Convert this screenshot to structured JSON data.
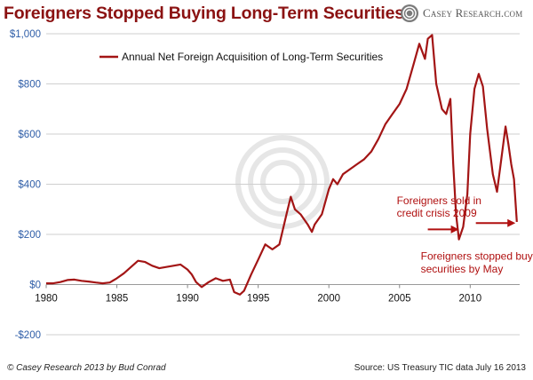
{
  "header": {
    "title": "Foreigners Stopped Buying Long-Term Securities",
    "logo_text": "Casey Research.com"
  },
  "footer": {
    "credit": "© Casey Research 2013 by Bud Conrad",
    "source": "Source: US Treasury TIC data July 16 2013"
  },
  "colors": {
    "series": "#a31515",
    "axis_labels": "#2f5ea8",
    "annotation": "#b01010",
    "title": "#8b1212"
  },
  "chart_data": {
    "type": "line",
    "title": "Foreigners Stopped Buying Long-Term Securities",
    "xlabel": "",
    "ylabel": "",
    "xlim": [
      1980,
      2013.5
    ],
    "ylim": [
      -200,
      1000
    ],
    "x_ticks": [
      1980,
      1985,
      1990,
      1995,
      2000,
      2005,
      2010
    ],
    "y_ticks": [
      -200,
      0,
      200,
      400,
      600,
      800,
      1000
    ],
    "y_tick_labels": [
      "-$200",
      "$0",
      "$200",
      "$400",
      "$600",
      "$800",
      "$1,000"
    ],
    "grid": "horizontal",
    "legend_position": "top-left",
    "series": [
      {
        "name": "Annual Net Foreign Acquisition of Long-Term Securities",
        "points": [
          [
            1980.0,
            5
          ],
          [
            1980.5,
            5
          ],
          [
            1981.0,
            10
          ],
          [
            1981.5,
            18
          ],
          [
            1982.0,
            20
          ],
          [
            1982.5,
            15
          ],
          [
            1983.0,
            12
          ],
          [
            1983.5,
            8
          ],
          [
            1984.0,
            5
          ],
          [
            1984.5,
            8
          ],
          [
            1985.0,
            25
          ],
          [
            1985.5,
            45
          ],
          [
            1986.0,
            70
          ],
          [
            1986.5,
            95
          ],
          [
            1987.0,
            90
          ],
          [
            1987.5,
            75
          ],
          [
            1988.0,
            65
          ],
          [
            1988.5,
            70
          ],
          [
            1989.0,
            75
          ],
          [
            1989.5,
            80
          ],
          [
            1990.0,
            60
          ],
          [
            1990.3,
            40
          ],
          [
            1990.6,
            10
          ],
          [
            1991.0,
            -10
          ],
          [
            1991.5,
            10
          ],
          [
            1992.0,
            25
          ],
          [
            1992.5,
            15
          ],
          [
            1993.0,
            20
          ],
          [
            1993.3,
            -30
          ],
          [
            1993.7,
            -40
          ],
          [
            1994.0,
            -25
          ],
          [
            1994.5,
            40
          ],
          [
            1995.0,
            100
          ],
          [
            1995.5,
            160
          ],
          [
            1996.0,
            140
          ],
          [
            1996.5,
            160
          ],
          [
            1997.0,
            280
          ],
          [
            1997.3,
            350
          ],
          [
            1997.6,
            300
          ],
          [
            1998.0,
            280
          ],
          [
            1998.5,
            240
          ],
          [
            1998.8,
            210
          ],
          [
            1999.0,
            240
          ],
          [
            1999.5,
            280
          ],
          [
            2000.0,
            380
          ],
          [
            2000.3,
            420
          ],
          [
            2000.6,
            400
          ],
          [
            2001.0,
            440
          ],
          [
            2001.5,
            460
          ],
          [
            2002.0,
            480
          ],
          [
            2002.5,
            500
          ],
          [
            2003.0,
            530
          ],
          [
            2003.5,
            580
          ],
          [
            2004.0,
            640
          ],
          [
            2004.5,
            680
          ],
          [
            2005.0,
            720
          ],
          [
            2005.5,
            780
          ],
          [
            2006.0,
            880
          ],
          [
            2006.4,
            960
          ],
          [
            2006.8,
            900
          ],
          [
            2007.0,
            980
          ],
          [
            2007.3,
            995
          ],
          [
            2007.6,
            800
          ],
          [
            2008.0,
            700
          ],
          [
            2008.3,
            680
          ],
          [
            2008.6,
            740
          ],
          [
            2008.8,
            480
          ],
          [
            2009.0,
            280
          ],
          [
            2009.2,
            180
          ],
          [
            2009.5,
            230
          ],
          [
            2009.8,
            360
          ],
          [
            2010.0,
            600
          ],
          [
            2010.3,
            780
          ],
          [
            2010.6,
            840
          ],
          [
            2010.9,
            790
          ],
          [
            2011.2,
            620
          ],
          [
            2011.6,
            440
          ],
          [
            2011.9,
            370
          ],
          [
            2012.2,
            500
          ],
          [
            2012.5,
            630
          ],
          [
            2012.7,
            560
          ],
          [
            2012.9,
            480
          ],
          [
            2013.1,
            420
          ],
          [
            2013.3,
            250
          ]
        ]
      }
    ],
    "annotations": [
      {
        "text": "Foreigners sold in",
        "x": 2004.8,
        "y": 320
      },
      {
        "text": "credit crisis 2009",
        "x": 2004.8,
        "y": 270
      },
      {
        "text": "Foreigners stopped buying",
        "x": 2006.5,
        "y": 100
      },
      {
        "text": "securities by May",
        "x": 2006.5,
        "y": 48
      }
    ],
    "arrows": [
      {
        "from": [
          2007.0,
          220
        ],
        "to": [
          2009.2,
          220
        ]
      },
      {
        "from": [
          2010.4,
          245
        ],
        "to": [
          2013.2,
          245
        ]
      }
    ]
  }
}
